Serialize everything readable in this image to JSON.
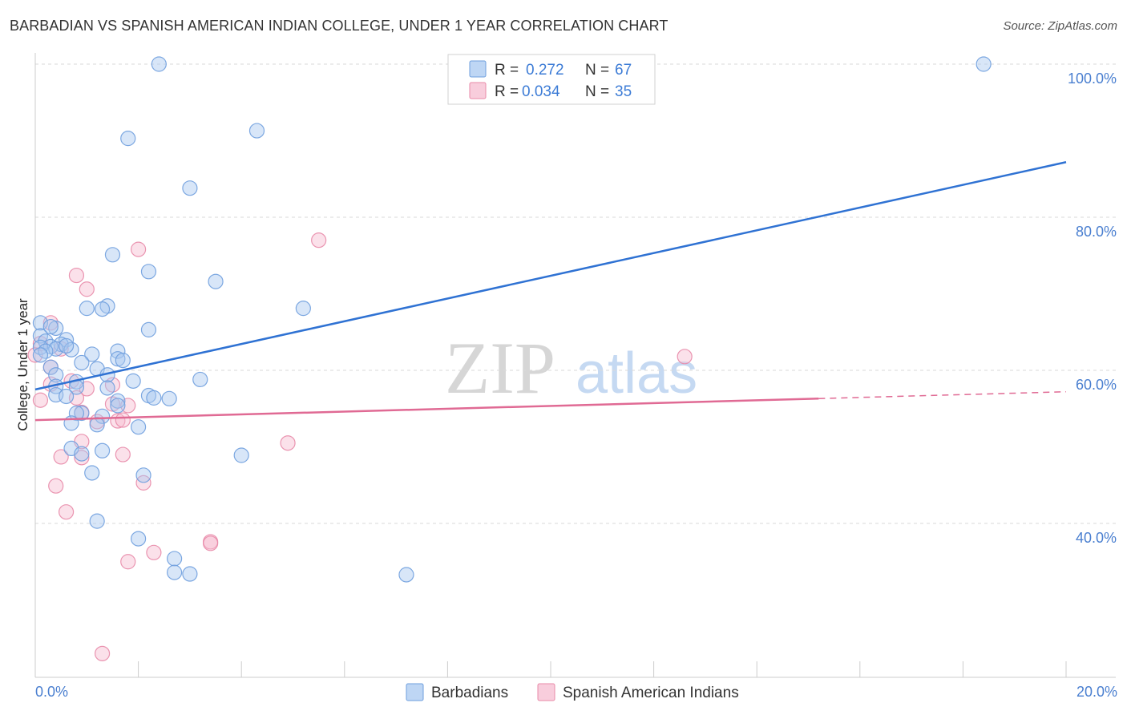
{
  "title": "BARBADIAN VS SPANISH AMERICAN INDIAN COLLEGE, UNDER 1 YEAR CORRELATION CHART",
  "source": "Source: ZipAtlas.com",
  "watermark": {
    "zip": "ZIP",
    "atlas": "atlas"
  },
  "legend": {
    "r_label": "R =",
    "n_label": "N =",
    "entries": [
      {
        "r": "0.272",
        "n": "67"
      },
      {
        "r": "0.034",
        "n": "35"
      }
    ]
  },
  "colors": {
    "blue_fill": "#a8c8f0",
    "blue_stroke": "#6f9fde",
    "blue_line": "#2f72d3",
    "pink_fill": "#f6bcd0",
    "pink_stroke": "#e88aa8",
    "pink_line": "#e06a94",
    "grid": "#d9d9d9",
    "axis_label": "#4a7fd0"
  },
  "chart_data": {
    "type": "scatter",
    "title": "BARBADIAN VS SPANISH AMERICAN INDIAN COLLEGE, UNDER 1 YEAR CORRELATION CHART",
    "xlabel": "",
    "ylabel": "College, Under 1 year",
    "xlim": [
      0,
      20
    ],
    "ylim": [
      20,
      102
    ],
    "x_tick_labels": [
      "0.0%",
      "20.0%"
    ],
    "y_ticks": [
      40,
      60,
      80,
      100
    ],
    "y_tick_labels": [
      "40.0%",
      "60.0%",
      "80.0%",
      "100.0%"
    ],
    "grid": true,
    "legend_position": "top-center",
    "series": [
      {
        "name": "Barbadians",
        "r": 0.272,
        "n": 67,
        "trend": {
          "x0": 0,
          "y0": 57.5,
          "x1": 20,
          "y1": 87.2,
          "dashed_from": null
        },
        "points": [
          [
            2.4,
            100.0
          ],
          [
            18.4,
            100.0
          ],
          [
            4.3,
            91.3
          ],
          [
            1.8,
            90.3
          ],
          [
            3.0,
            83.8
          ],
          [
            1.5,
            75.1
          ],
          [
            2.2,
            72.9
          ],
          [
            3.5,
            71.6
          ],
          [
            1.4,
            68.4
          ],
          [
            1.3,
            68.0
          ],
          [
            1.0,
            68.1
          ],
          [
            5.2,
            68.1
          ],
          [
            0.1,
            66.2
          ],
          [
            0.4,
            65.5
          ],
          [
            0.3,
            65.7
          ],
          [
            2.2,
            65.3
          ],
          [
            0.1,
            64.5
          ],
          [
            0.6,
            64.0
          ],
          [
            0.2,
            63.8
          ],
          [
            0.5,
            63.4
          ],
          [
            0.3,
            63.1
          ],
          [
            0.1,
            63.0
          ],
          [
            0.4,
            62.8
          ],
          [
            0.7,
            62.7
          ],
          [
            0.2,
            62.5
          ],
          [
            1.6,
            62.5
          ],
          [
            1.1,
            62.1
          ],
          [
            1.6,
            61.5
          ],
          [
            1.7,
            61.3
          ],
          [
            0.9,
            61.0
          ],
          [
            1.2,
            60.2
          ],
          [
            0.3,
            60.4
          ],
          [
            0.4,
            59.4
          ],
          [
            1.4,
            59.4
          ],
          [
            3.2,
            58.8
          ],
          [
            1.9,
            58.6
          ],
          [
            0.8,
            58.5
          ],
          [
            0.8,
            57.8
          ],
          [
            0.4,
            57.9
          ],
          [
            1.4,
            57.7
          ],
          [
            0.4,
            56.8
          ],
          [
            0.6,
            56.6
          ],
          [
            2.2,
            56.7
          ],
          [
            2.3,
            56.4
          ],
          [
            2.6,
            56.3
          ],
          [
            1.6,
            56.0
          ],
          [
            1.6,
            55.4
          ],
          [
            0.9,
            54.4
          ],
          [
            1.3,
            54.0
          ],
          [
            0.8,
            54.4
          ],
          [
            0.7,
            53.1
          ],
          [
            1.2,
            52.9
          ],
          [
            2.0,
            52.6
          ],
          [
            0.7,
            49.8
          ],
          [
            0.9,
            49.1
          ],
          [
            1.3,
            49.5
          ],
          [
            4.0,
            48.9
          ],
          [
            1.1,
            46.6
          ],
          [
            2.1,
            46.3
          ],
          [
            1.2,
            40.3
          ],
          [
            2.0,
            38.0
          ],
          [
            2.7,
            35.4
          ],
          [
            2.7,
            33.6
          ],
          [
            3.0,
            33.4
          ],
          [
            7.2,
            33.3
          ],
          [
            0.1,
            62.0
          ],
          [
            0.6,
            63.2
          ]
        ]
      },
      {
        "name": "Spanish American Indians",
        "r": 0.034,
        "n": 35,
        "trend": {
          "x0": 0,
          "y0": 53.5,
          "x1": 20,
          "y1": 57.2,
          "dashed_from": 15.2
        },
        "points": [
          [
            5.5,
            77.0
          ],
          [
            2.0,
            75.8
          ],
          [
            0.8,
            72.4
          ],
          [
            1.0,
            70.6
          ],
          [
            0.3,
            66.2
          ],
          [
            0.1,
            63.5
          ],
          [
            0.5,
            62.8
          ],
          [
            0.0,
            62.0
          ],
          [
            12.6,
            61.8
          ],
          [
            0.3,
            60.4
          ],
          [
            0.7,
            58.6
          ],
          [
            0.3,
            58.2
          ],
          [
            1.5,
            58.1
          ],
          [
            1.0,
            57.6
          ],
          [
            0.8,
            56.4
          ],
          [
            0.1,
            56.1
          ],
          [
            1.5,
            55.6
          ],
          [
            1.8,
            55.4
          ],
          [
            0.9,
            54.5
          ],
          [
            1.2,
            53.3
          ],
          [
            1.6,
            53.4
          ],
          [
            1.7,
            53.5
          ],
          [
            0.9,
            50.7
          ],
          [
            4.9,
            50.5
          ],
          [
            1.7,
            49.0
          ],
          [
            0.5,
            48.7
          ],
          [
            0.9,
            48.6
          ],
          [
            2.1,
            45.3
          ],
          [
            0.4,
            44.9
          ],
          [
            0.6,
            41.5
          ],
          [
            3.4,
            37.6
          ],
          [
            3.4,
            37.4
          ],
          [
            2.3,
            36.2
          ],
          [
            1.8,
            35.0
          ],
          [
            1.3,
            23.0
          ]
        ]
      }
    ]
  }
}
